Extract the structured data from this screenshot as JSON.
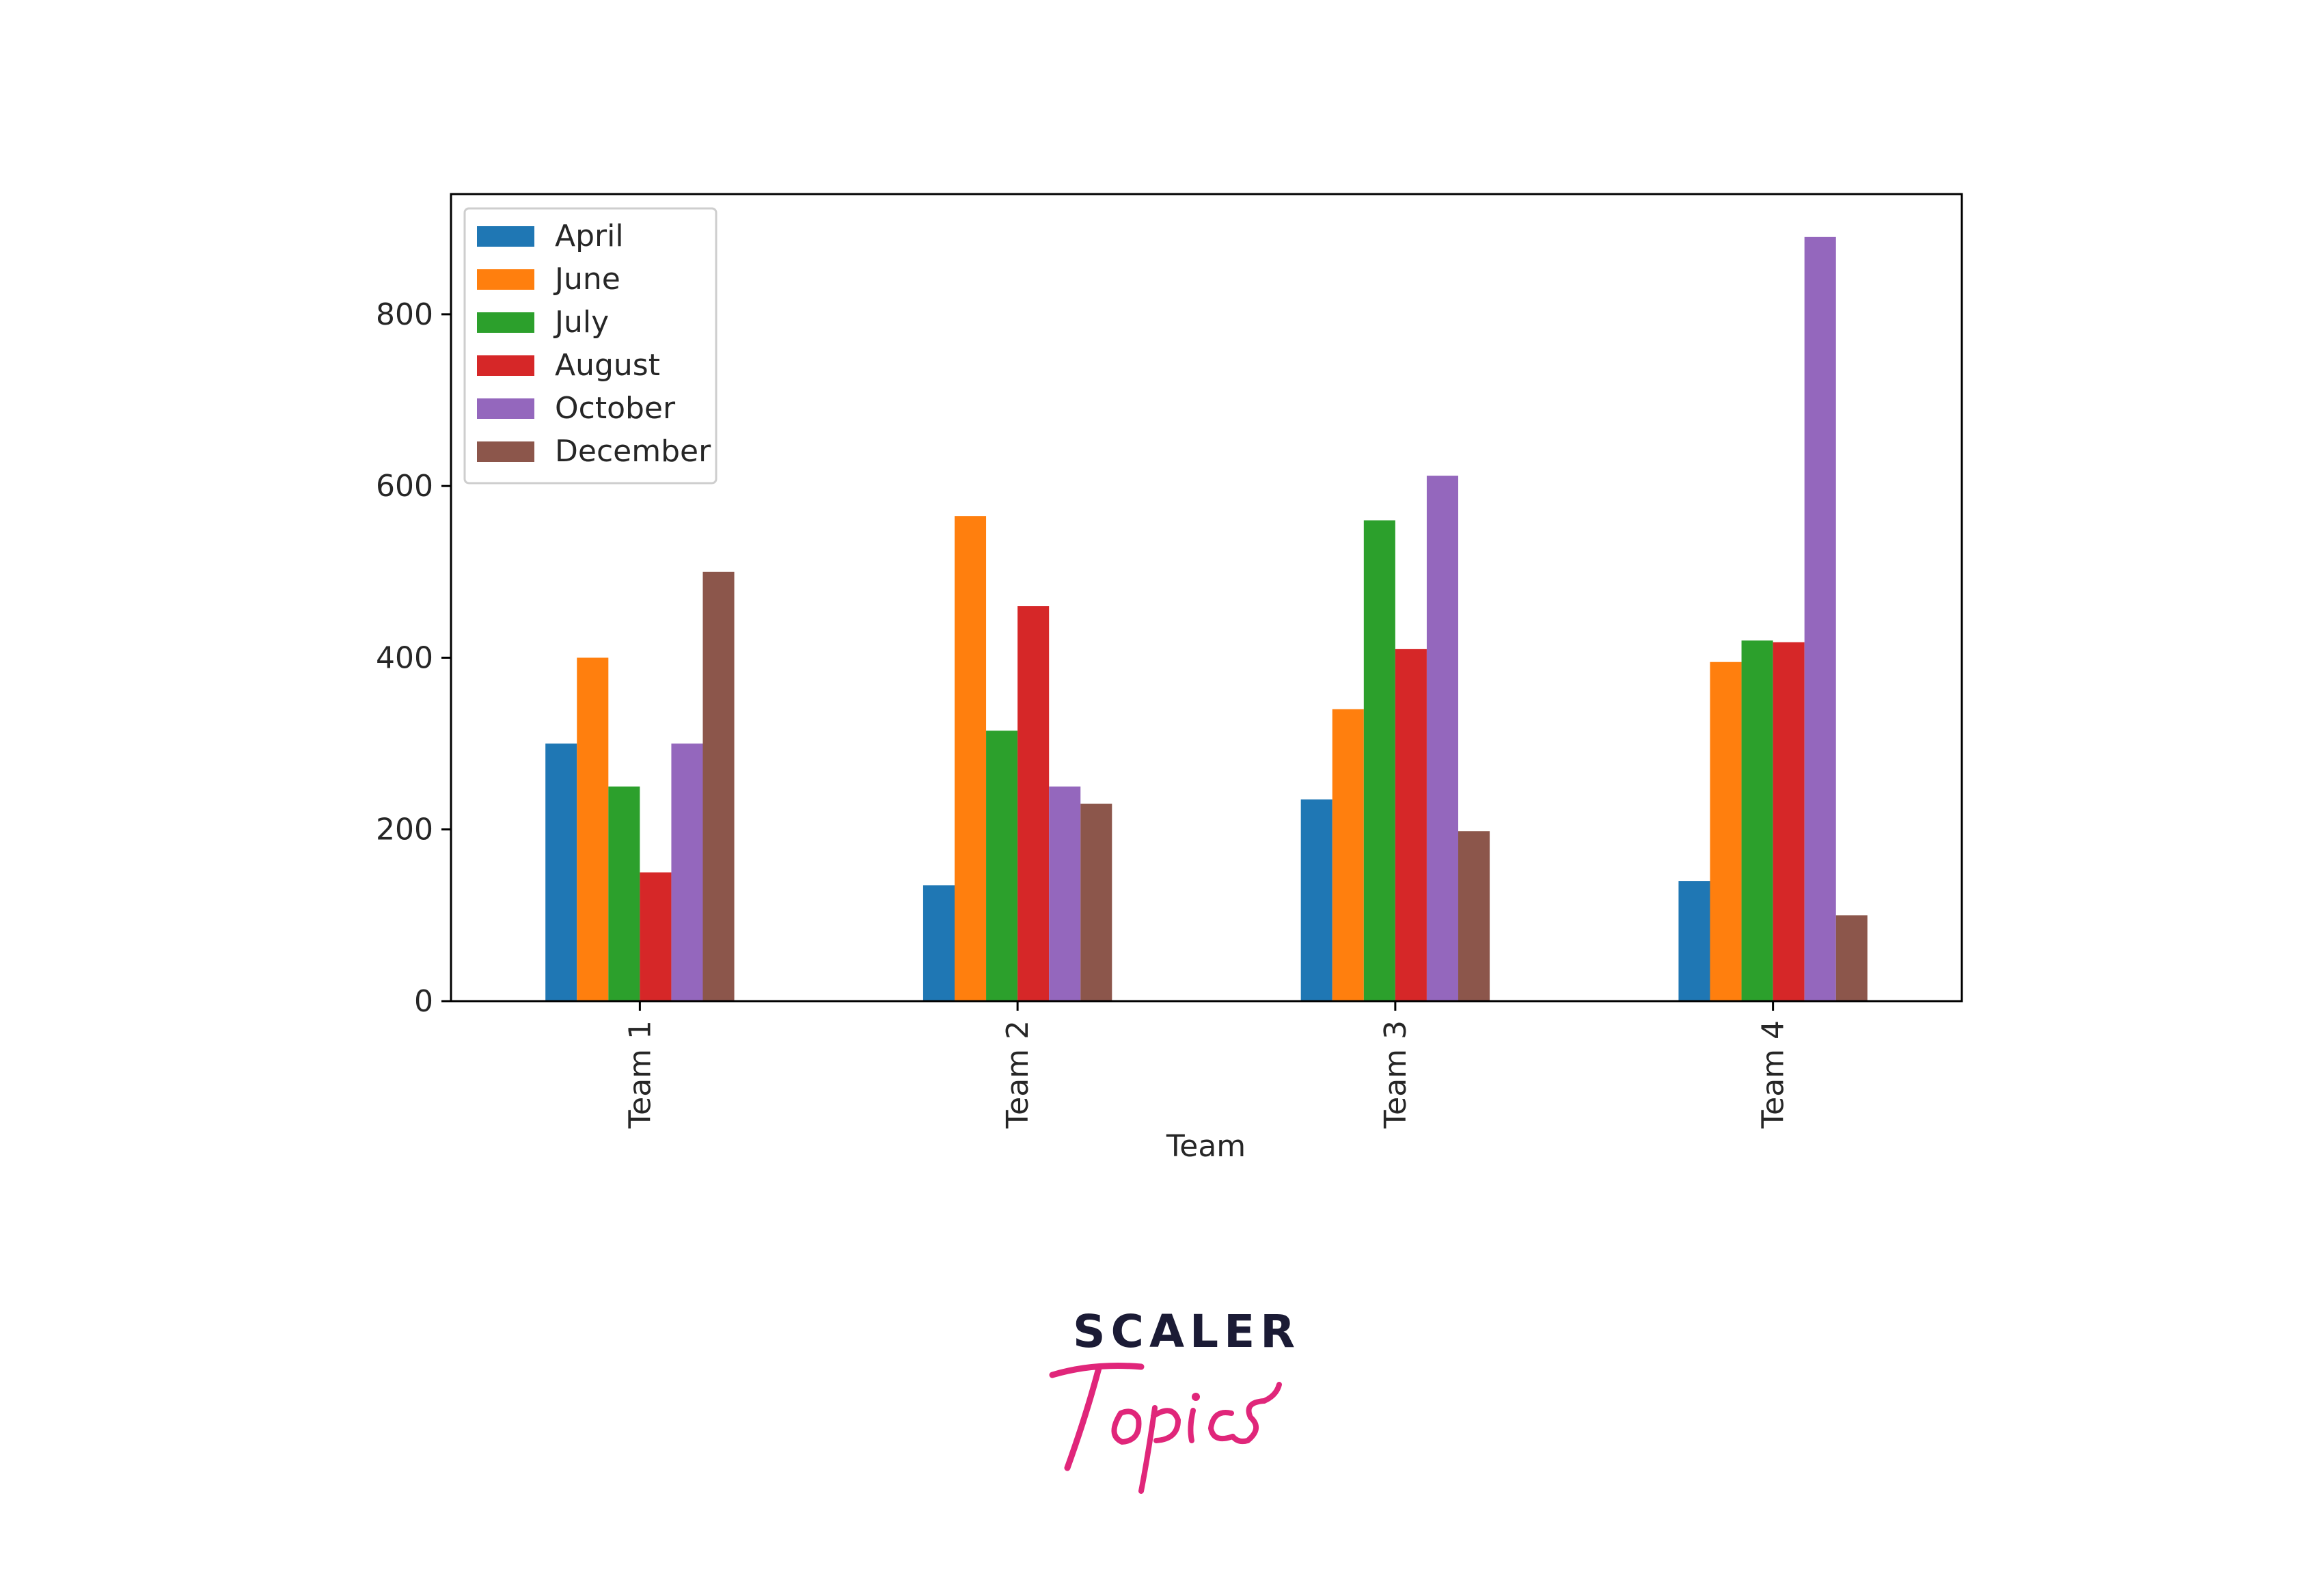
{
  "chart_data": {
    "type": "bar",
    "title": "",
    "xlabel": "Team",
    "ylabel": "",
    "ylim": [
      0,
      940
    ],
    "yticks": [
      0,
      200,
      400,
      600,
      800
    ],
    "categories": [
      "Team 1",
      "Team 2",
      "Team 3",
      "Team 4"
    ],
    "legend_position": "top-left",
    "grid": false,
    "series": [
      {
        "name": "April",
        "color": "#1f77b4",
        "values": [
          300,
          135,
          235,
          140
        ]
      },
      {
        "name": "June",
        "color": "#ff7f0e",
        "values": [
          400,
          565,
          340,
          395
        ]
      },
      {
        "name": "July",
        "color": "#2ca02c",
        "values": [
          250,
          315,
          560,
          420
        ]
      },
      {
        "name": "August",
        "color": "#d62728",
        "values": [
          150,
          460,
          410,
          418
        ]
      },
      {
        "name": "October",
        "color": "#9467bd",
        "values": [
          300,
          250,
          612,
          890
        ]
      },
      {
        "name": "December",
        "color": "#8c564b",
        "values": [
          500,
          230,
          198,
          100
        ]
      }
    ]
  },
  "logo": {
    "word": "SCALER",
    "script": "Topics",
    "word_color": "#1b1b35",
    "script_color": "#e0267a"
  }
}
